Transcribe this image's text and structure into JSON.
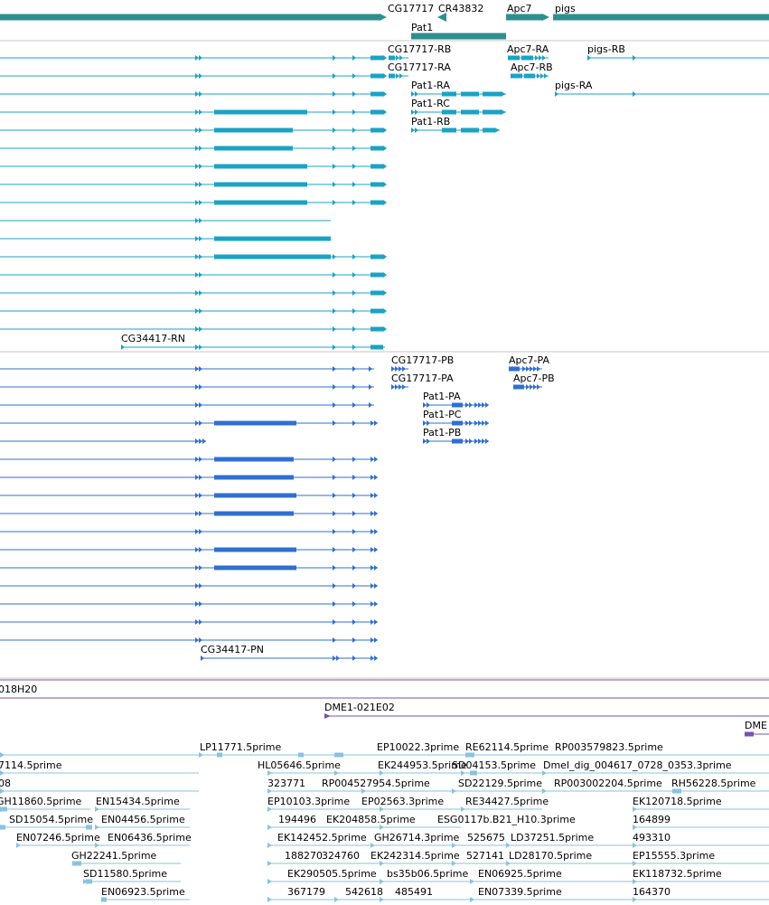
{
  "colors": {
    "gene": "#2f8f8f",
    "transcript": "#1aa3c4",
    "cds": "#2f6fd0",
    "clone": "#7b4fb0",
    "est": "#89c3e0",
    "divider": "#c8c8c8"
  },
  "tracks": {
    "genes": {
      "labels": [
        "CG17717",
        "CR43832",
        "Apc7",
        "pigs",
        "Pat1"
      ]
    },
    "transcripts": {
      "labels": [
        "CG17717-RB",
        "Apc7-RA",
        "pigs-RB",
        "CG17717-RA",
        "Apc7-RB",
        "Pat1-RA",
        "pigs-RA",
        "Pat1-RC",
        "Pat1-RB",
        "CG34417-RN"
      ]
    },
    "cds": {
      "labels": [
        "CG17717-PB",
        "Apc7-PA",
        "CG17717-PA",
        "Apc7-PB",
        "Pat1-PA",
        "Pat1-PC",
        "Pat1-PB",
        "CG34417-PN"
      ]
    },
    "clones": {
      "labels": [
        "018H20",
        "DME1-021E02",
        "DME"
      ]
    },
    "ests": {
      "labels": [
        "LP11771.5prime",
        "EP10022.3prime",
        "RE62114.5prime",
        "RP003579823.5prime",
        "7114.5prime",
        "HL05646.5prime",
        "EK244953.5prime",
        "SD04153.5prime",
        "Dmel_dig_004617_0728_0353.3prime",
        "08",
        "323771",
        "RP004527954.5prime",
        "SD22129.5prime",
        "RP003002204.5prime",
        "RH56228.5prime",
        "GH11860.5prime",
        "EN15434.5prime",
        "EP10103.3prime",
        "EP02563.3prime",
        "RE34427.5prime",
        "EK120718.5prime",
        "SD15054.5prime",
        "EN04456.5prime",
        "194496",
        "EK204858.5prime",
        "ESG0117b.B21_H10.3prime",
        "164899",
        "EN07246.5prime",
        "EN06436.5prime",
        "EK142452.5prime",
        "GH26714.3prime",
        "525675",
        "LD37251.5prime",
        "493310",
        "GH22241.5prime",
        "188270",
        "324760",
        "EK242314.5prime",
        "527141",
        "LD28170.5prime",
        "EP15555.3prime",
        "SD11580.5prime",
        "EK290505.5prime",
        "bs35b06.5prime",
        "EN06925.5prime",
        "EK118732.5prime",
        "EN06923.5prime",
        "367179",
        "542618",
        "485491",
        "EN07339.5prime",
        "164370"
      ]
    }
  }
}
